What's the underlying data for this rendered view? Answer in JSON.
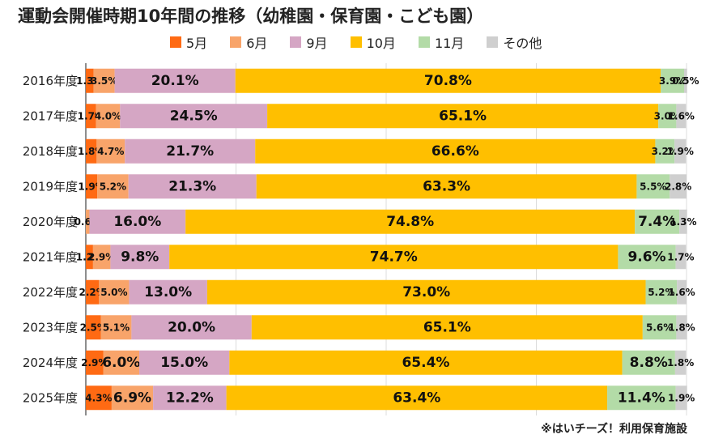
{
  "chart_data": {
    "type": "bar",
    "orientation": "horizontal-stacked",
    "title": "運動会開催時期10年間の推移（幼稚園・保育園・こども園）",
    "categories": [
      "2016年度",
      "2017年度",
      "2018年度",
      "2019年度",
      "2020年度",
      "2021年度",
      "2022年度",
      "2023年度",
      "2024年度",
      "2025年度"
    ],
    "series": [
      {
        "name": "5月",
        "color": "#ff6a13",
        "values": [
          1.3,
          1.7,
          1.8,
          1.9,
          0.0,
          1.2,
          2.2,
          2.5,
          2.9,
          4.3
        ]
      },
      {
        "name": "6月",
        "color": "#f8a46a",
        "values": [
          3.5,
          4.0,
          4.7,
          5.2,
          0.6,
          2.9,
          5.0,
          5.1,
          6.0,
          6.9
        ]
      },
      {
        "name": "9月",
        "color": "#d5a6c4",
        "values": [
          20.1,
          24.5,
          21.7,
          21.3,
          16.0,
          9.8,
          13.0,
          20.0,
          15.0,
          12.2
        ]
      },
      {
        "name": "10月",
        "color": "#ffbf00",
        "values": [
          70.8,
          65.1,
          66.6,
          63.3,
          74.8,
          74.7,
          73.0,
          65.1,
          65.4,
          63.4
        ]
      },
      {
        "name": "11月",
        "color": "#b3dba7",
        "values": [
          3.9,
          3.0,
          3.2,
          5.5,
          7.4,
          9.6,
          5.2,
          5.6,
          8.8,
          11.4
        ]
      },
      {
        "name": "その他",
        "color": "#cfcfcf",
        "values": [
          0.5,
          1.6,
          1.9,
          2.8,
          1.3,
          1.7,
          1.6,
          1.8,
          1.8,
          1.9
        ]
      }
    ],
    "data_labels": [
      [
        "1.3%",
        "3.5%",
        "20.1%",
        "70.8%",
        "3.9%",
        "0.5%"
      ],
      [
        "1.7%",
        "4.0%",
        "24.5%",
        "65.1%",
        "3.0%",
        "1.6%"
      ],
      [
        "1.8%",
        "4.7%",
        "21.7%",
        "66.6%",
        "3.2%",
        "1.9%"
      ],
      [
        "1.9%",
        "5.2%",
        "21.3%",
        "63.3%",
        "5.5%",
        "2.8%"
      ],
      [
        "",
        "0.6%",
        "16.0%",
        "74.8%",
        "7.4%",
        "1.3%"
      ],
      [
        "1.2%",
        "2.9%",
        "9.8%",
        "74.7%",
        "9.6%",
        "1.7%"
      ],
      [
        "2.2%",
        "5.0%",
        "13.0%",
        "73.0%",
        "5.2%",
        "1.6%"
      ],
      [
        "2.5%",
        "5.1%",
        "20.0%",
        "65.1%",
        "5.6%",
        "1.8%"
      ],
      [
        "2.9%",
        "6.0%",
        "15.0%",
        "65.4%",
        "8.8%",
        "1.8%"
      ],
      [
        "4.3%",
        "6.9%",
        "12.2%",
        "63.4%",
        "11.4%",
        "1.9%"
      ]
    ],
    "xlim": [
      0,
      100
    ],
    "grid": true,
    "legend_position": "top"
  },
  "source_note": "※はいチーズ！利用保育施設"
}
